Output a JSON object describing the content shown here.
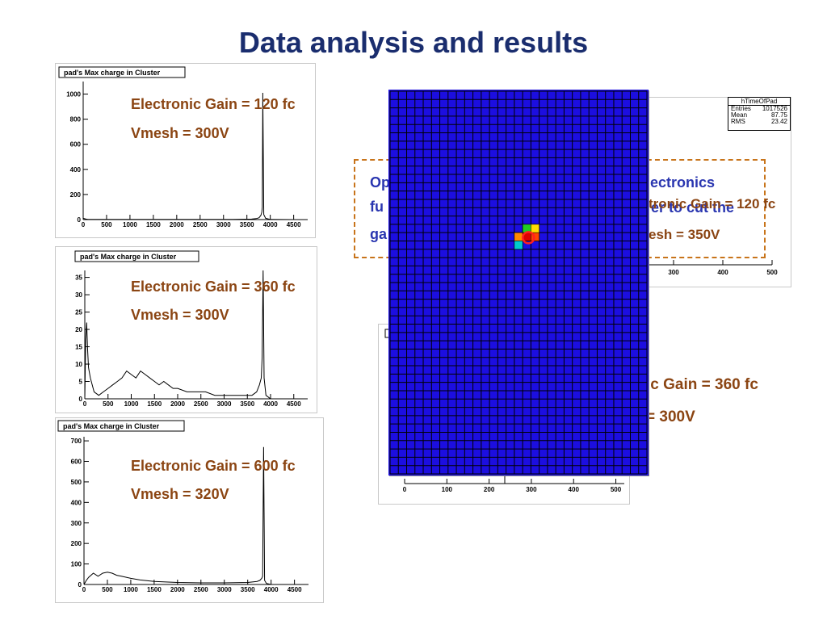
{
  "slide_title": "Data analysis and results",
  "colors": {
    "title": "#1a2d6e",
    "annotation": "#8b4513",
    "callout_text": "#2a36b0",
    "callout_border": "#c8741a",
    "map_fill": "#1c0ee0"
  },
  "annotations": {
    "p1_gain": "Electronic Gain = 120 fc",
    "p1_vmesh": "Vmesh = 300V",
    "p2_gain": "Electronic Gain = 360 fc",
    "p2_vmesh": "Vmesh = 300V",
    "p3_gain": "Electronic Gain = 600 fc",
    "p3_vmesh": "Vmesh = 320V",
    "r_top_gain": "tronic Gain = 120 fc",
    "r_top_vmesh": "esh = 350V",
    "r_bot_gain": "ic Gain = 360 fc",
    "r_bot_vmesh": "= 300V"
  },
  "callout": {
    "line1_left": "Op",
    "line1_right": "ectronics",
    "line2_left": "fu",
    "line2_right": "er to cut the",
    "line3_left": "ga"
  },
  "stats_box": {
    "title": "hTimeOfPad",
    "rows": [
      {
        "k": "Entries",
        "v": "1017526"
      },
      {
        "k": "Mean",
        "v": "87.75"
      },
      {
        "k": "RMS",
        "v": "23.42"
      }
    ]
  },
  "chart_data": [
    {
      "type": "line",
      "title": "pad's Max charge in Cluster",
      "xlim": [
        0,
        4800
      ],
      "ylim": [
        0,
        1100
      ],
      "x_ticks": [
        "0",
        "500",
        "1000",
        "1500",
        "2000",
        "2500",
        "3000",
        "3500",
        "4000",
        "4500"
      ],
      "y_ticks": [
        "0",
        "200",
        "400",
        "600",
        "800",
        "1000"
      ],
      "x": [
        0,
        50,
        100,
        200,
        400,
        800,
        1200,
        1600,
        2000,
        2400,
        2800,
        3200,
        3600,
        3700,
        3760,
        3800,
        3820,
        3830,
        3840,
        3860,
        3900,
        4000,
        4500,
        4800
      ],
      "y": [
        10,
        5,
        2,
        1,
        1,
        1,
        1,
        1,
        1,
        1,
        1,
        2,
        4,
        8,
        15,
        35,
        60,
        100,
        1010,
        40,
        10,
        1,
        0,
        0
      ]
    },
    {
      "type": "line",
      "title": "pad's Max charge in Cluster",
      "xlim": [
        0,
        4800
      ],
      "ylim": [
        0,
        37
      ],
      "x_ticks": [
        "0",
        "500",
        "1000",
        "1500",
        "2000",
        "2500",
        "3000",
        "3500",
        "4000",
        "4500"
      ],
      "y_ticks": [
        "0",
        "5",
        "10",
        "15",
        "20",
        "25",
        "30",
        "35"
      ],
      "x": [
        0,
        20,
        40,
        60,
        80,
        120,
        200,
        300,
        400,
        500,
        600,
        700,
        800,
        900,
        1000,
        1100,
        1200,
        1300,
        1400,
        1500,
        1600,
        1700,
        1800,
        1900,
        2000,
        2200,
        2400,
        2600,
        2800,
        3000,
        3200,
        3400,
        3600,
        3700,
        3760,
        3800,
        3820,
        3840,
        3860,
        3900,
        4000,
        4800
      ],
      "y": [
        0,
        17,
        22,
        14,
        9,
        6,
        2,
        1,
        2,
        3,
        4,
        5,
        6,
        8,
        7,
        6,
        8,
        7,
        6,
        5,
        4,
        5,
        4,
        3,
        3,
        2,
        2,
        2,
        1,
        1,
        1,
        1,
        1,
        2,
        4,
        6,
        12,
        37,
        6,
        1,
        0,
        0
      ]
    },
    {
      "type": "line",
      "title": "pad's Max charge in Cluster",
      "xlim": [
        0,
        4800
      ],
      "ylim": [
        0,
        720
      ],
      "x_ticks": [
        "0",
        "500",
        "1000",
        "1500",
        "2000",
        "2500",
        "3000",
        "3500",
        "4000",
        "4500"
      ],
      "y_ticks": [
        "0",
        "100",
        "200",
        "300",
        "400",
        "500",
        "600",
        "700"
      ],
      "x": [
        0,
        50,
        100,
        200,
        300,
        400,
        500,
        600,
        700,
        800,
        1000,
        1200,
        1500,
        2000,
        2500,
        3000,
        3500,
        3700,
        3760,
        3800,
        3820,
        3840,
        3860,
        3900,
        4000,
        4800
      ],
      "y": [
        0,
        20,
        35,
        55,
        40,
        55,
        60,
        55,
        45,
        40,
        30,
        22,
        15,
        10,
        8,
        8,
        10,
        15,
        20,
        30,
        40,
        670,
        20,
        5,
        0,
        0
      ]
    },
    {
      "type": "line",
      "title": "hTimeOfPad",
      "xlim": [
        0,
        500
      ],
      "x_ticks": [
        "300",
        "400",
        "500"
      ]
    },
    {
      "type": "line",
      "xlim": [
        0,
        520
      ],
      "x_ticks": [
        "0",
        "100",
        "200",
        "300",
        "400",
        "500"
      ]
    },
    {
      "type": "heatmap",
      "grid": {
        "cols": 31,
        "rows": 46
      },
      "hot_cells": [
        {
          "col": 16,
          "row": 16,
          "color": "#22cc22"
        },
        {
          "col": 17,
          "row": 16,
          "color": "#ffdd00"
        },
        {
          "col": 15,
          "row": 17,
          "color": "#ff8800"
        },
        {
          "col": 16,
          "row": 17,
          "color": "#dd0000"
        },
        {
          "col": 17,
          "row": 17,
          "color": "#ff4400"
        },
        {
          "col": 15,
          "row": 18,
          "color": "#00cccc"
        }
      ]
    }
  ]
}
